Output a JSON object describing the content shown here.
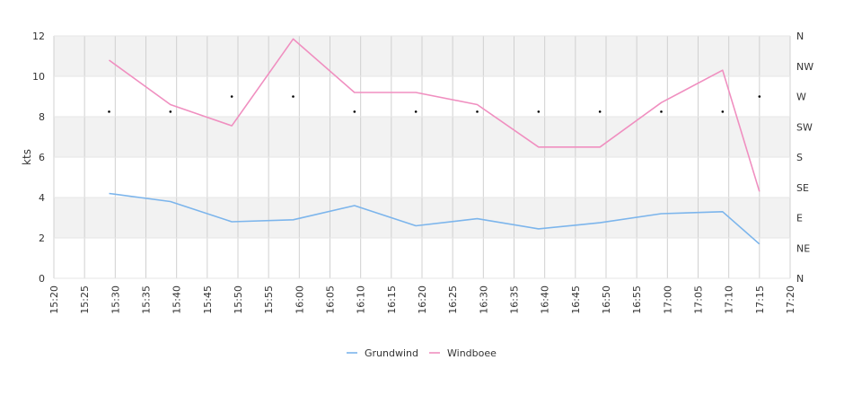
{
  "chart_data": {
    "type": "line",
    "ylabel": "kts",
    "ylim": [
      0,
      12
    ],
    "y_ticks": [
      "0",
      "2",
      "4",
      "6",
      "8",
      "10",
      "12"
    ],
    "right_axis_ticks": [
      "N",
      "NE",
      "E",
      "SE",
      "S",
      "SW",
      "W",
      "NW",
      "N"
    ],
    "x_ticks": [
      "15:20",
      "15:25",
      "15:30",
      "15:35",
      "15:40",
      "15:45",
      "15:50",
      "15:55",
      "16:00",
      "16:05",
      "16:10",
      "16:15",
      "16:20",
      "16:25",
      "16:30",
      "16:35",
      "16:40",
      "16:45",
      "16:50",
      "16:55",
      "17:00",
      "17:05",
      "17:10",
      "17:15",
      "17:20"
    ],
    "x": [
      "15:29",
      "15:39",
      "15:49",
      "15:59",
      "16:09",
      "16:19",
      "16:29",
      "16:39",
      "16:49",
      "16:59",
      "17:09",
      "17:15"
    ],
    "series": [
      {
        "name": "Grundwind",
        "color": "#7cb5ec",
        "values": [
          4.2,
          3.8,
          2.8,
          2.9,
          3.6,
          2.6,
          2.95,
          2.45,
          2.75,
          3.2,
          3.3,
          1.7
        ]
      },
      {
        "name": "Windboee",
        "color": "#f08fc0",
        "values": [
          10.8,
          8.6,
          7.55,
          11.85,
          9.2,
          9.2,
          8.6,
          6.5,
          6.5,
          8.7,
          10.3,
          4.3
        ]
      }
    ],
    "direction_markers": [
      {
        "x": "15:29",
        "dir": "WSW"
      },
      {
        "x": "15:39",
        "dir": "WSW"
      },
      {
        "x": "15:49",
        "dir": "W"
      },
      {
        "x": "15:59",
        "dir": "W"
      },
      {
        "x": "16:09",
        "dir": "WSW"
      },
      {
        "x": "16:19",
        "dir": "WSW"
      },
      {
        "x": "16:29",
        "dir": "WSW"
      },
      {
        "x": "16:39",
        "dir": "WSW"
      },
      {
        "x": "16:49",
        "dir": "WSW"
      },
      {
        "x": "16:59",
        "dir": "WSW"
      },
      {
        "x": "17:09",
        "dir": "WSW"
      },
      {
        "x": "17:15",
        "dir": "W"
      }
    ],
    "band_color": "#f2f2f2",
    "grid": true,
    "legend": "bottom-center"
  }
}
